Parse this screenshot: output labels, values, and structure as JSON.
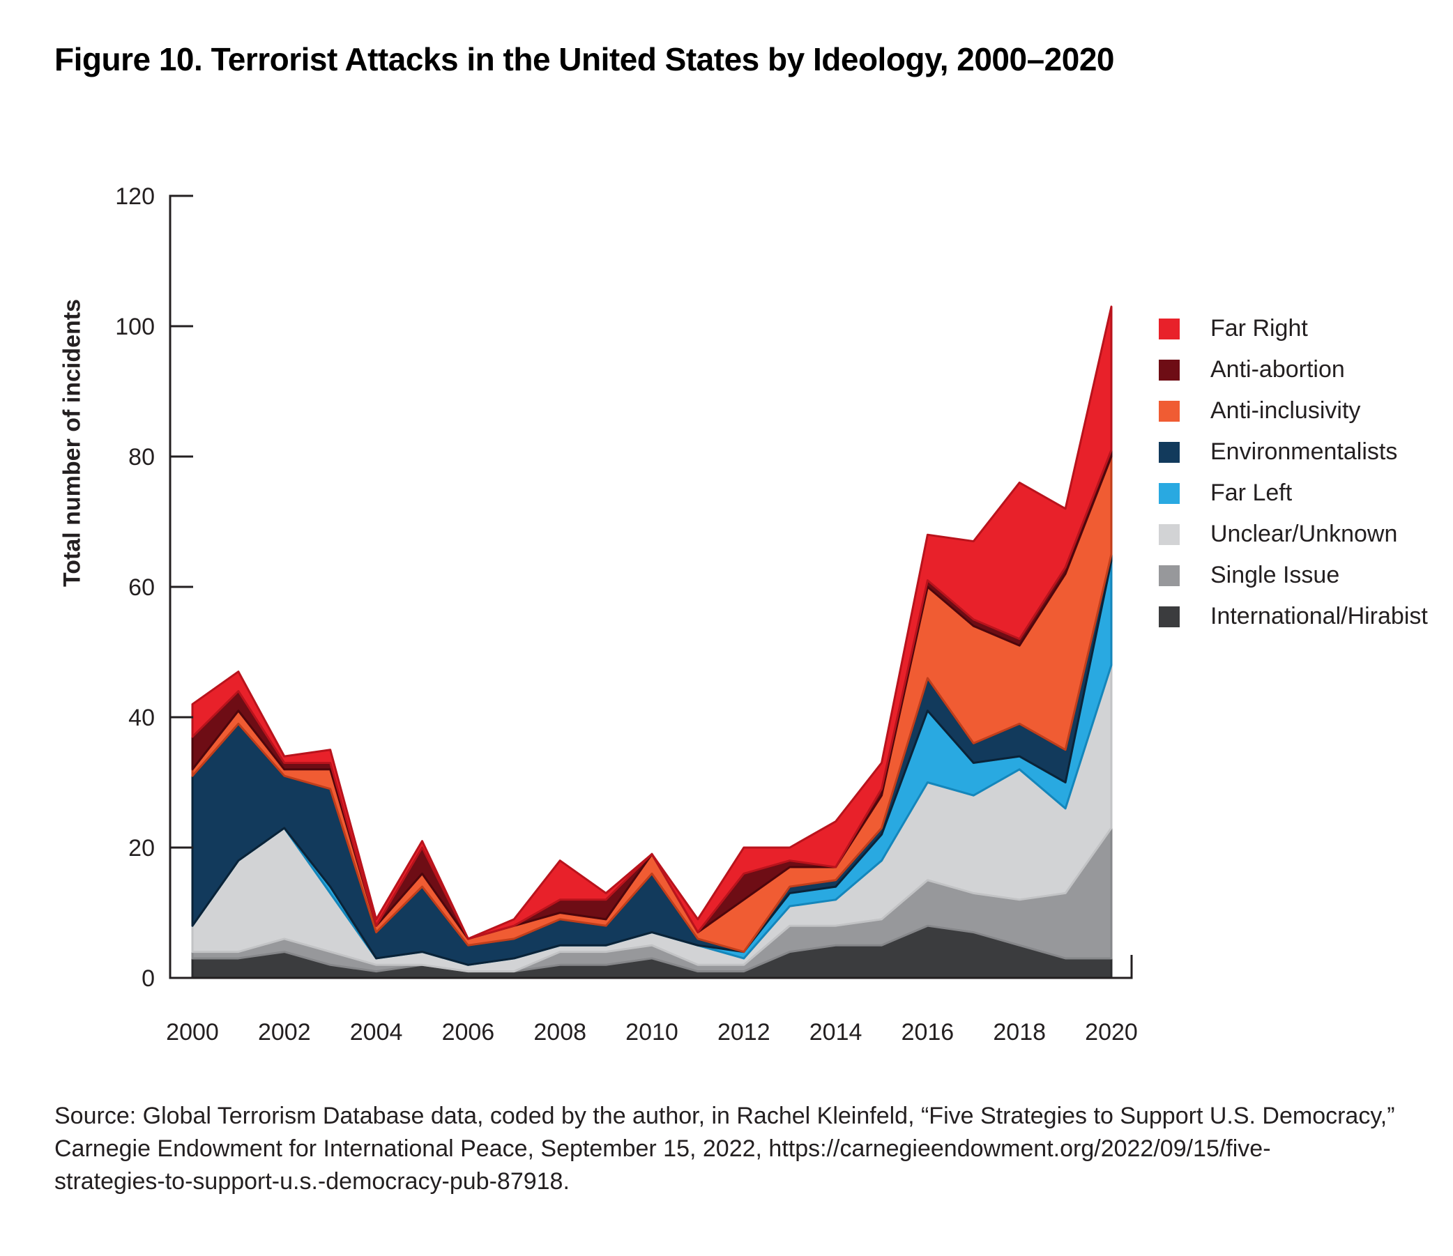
{
  "title": "Figure 10. Terrorist Attacks in the United States by Ideology, 2000–2020",
  "source": {
    "lines": [
      "Source: Global Terrorism Database data, coded by the author, in Rachel Kleinfeld, “Five Strategies to Support U.S. Democracy,”",
      "Carnegie Endowment for International Peace, September 15, 2022, https://carnegieendowment.org/2022/09/15/five-",
      "strategies-to-support-u.s.-democracy-pub-87918."
    ]
  },
  "chart_data": {
    "type": "area",
    "stacked": true,
    "title": "Figure 10. Terrorist Attacks in the United States by Ideology, 2000–2020",
    "xlabel": "",
    "ylabel": "Total number of incidents",
    "ylim": [
      0,
      120
    ],
    "y_ticks": [
      0,
      20,
      40,
      60,
      80,
      100,
      120
    ],
    "years": [
      2000,
      2001,
      2002,
      2003,
      2004,
      2005,
      2006,
      2007,
      2008,
      2009,
      2010,
      2011,
      2012,
      2013,
      2014,
      2015,
      2016,
      2017,
      2018,
      2019,
      2020
    ],
    "x_tick_labels": [
      "2000",
      "2002",
      "2004",
      "2006",
      "2008",
      "2010",
      "2012",
      "2014",
      "2016",
      "2018",
      "2020"
    ],
    "legend_position": "right",
    "grid": false,
    "stack_note": "series listed top-to-bottom as in legend; bottom band of the stack is the last item (International/Hirabist)",
    "series": [
      {
        "name": "Far Right",
        "color": "#E8212A",
        "edge": "#B9131C",
        "values": [
          5,
          3,
          1,
          2,
          1,
          1,
          0,
          1,
          6,
          1,
          0,
          2,
          4,
          2,
          7,
          4,
          7,
          12,
          24,
          9,
          22
        ]
      },
      {
        "name": "Anti-abortion",
        "color": "#6E0D15",
        "edge": "#4E060C",
        "values": [
          5,
          3,
          1,
          1,
          0,
          4,
          0,
          0,
          2,
          3,
          0,
          0,
          4,
          1,
          0,
          1,
          1,
          1,
          1,
          1,
          1
        ]
      },
      {
        "name": "Anti-inclusivity",
        "color": "#F05C33",
        "edge": "#C13E1B",
        "values": [
          1,
          2,
          1,
          3,
          1,
          2,
          1,
          2,
          1,
          1,
          3,
          1,
          8,
          3,
          2,
          5,
          14,
          18,
          12,
          27,
          15
        ]
      },
      {
        "name": "Environmentalists",
        "color": "#123A5C",
        "edge": "#0A2338",
        "values": [
          23,
          21,
          8,
          15,
          4,
          10,
          3,
          3,
          4,
          3,
          9,
          1,
          0,
          1,
          1,
          1,
          5,
          3,
          5,
          5,
          1
        ]
      },
      {
        "name": "Far Left",
        "color": "#29A9E1",
        "edge": "#1486BB",
        "values": [
          0,
          0,
          0,
          1,
          0,
          0,
          0,
          0,
          0,
          0,
          0,
          0,
          1,
          2,
          2,
          4,
          11,
          5,
          2,
          4,
          16
        ]
      },
      {
        "name": "Unclear/Unknown",
        "color": "#D2D3D5",
        "edge": "#C2C3C5",
        "values": [
          4,
          14,
          17,
          9,
          1,
          2,
          1,
          2,
          1,
          1,
          2,
          3,
          1,
          3,
          4,
          9,
          15,
          15,
          20,
          13,
          25
        ]
      },
      {
        "name": "Single Issue",
        "color": "#97989B",
        "edge": "#86878A",
        "values": [
          1,
          1,
          2,
          2,
          1,
          0,
          0,
          0,
          2,
          2,
          2,
          1,
          1,
          4,
          3,
          4,
          7,
          6,
          7,
          10,
          20
        ]
      },
      {
        "name": "International/Hirabist",
        "color": "#3B3C3E",
        "edge": "#2C2D2F",
        "values": [
          3,
          3,
          4,
          2,
          1,
          2,
          1,
          1,
          2,
          2,
          3,
          1,
          1,
          4,
          5,
          5,
          8,
          7,
          5,
          3,
          3
        ]
      }
    ]
  }
}
